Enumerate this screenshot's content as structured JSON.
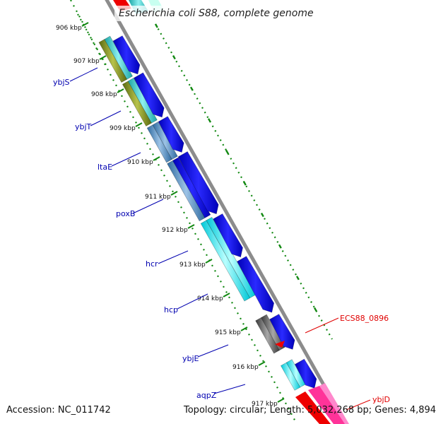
{
  "title": "Escherichia coli S88, complete genome",
  "footer": {
    "accession": "Accession: NC_011742",
    "summary": "Topology: circular; Length: 5,032,268 bp; Genes: 4,894"
  },
  "ticks": [
    {
      "label": "906 kbp"
    },
    {
      "label": "907 kbp"
    },
    {
      "label": "908 kbp"
    },
    {
      "label": "909 kbp"
    },
    {
      "label": "910 kbp"
    },
    {
      "label": "911 kbp"
    },
    {
      "label": "912 kbp"
    },
    {
      "label": "913 kbp"
    },
    {
      "label": "914 kbp"
    },
    {
      "label": "915 kbp"
    },
    {
      "label": "916 kbp"
    },
    {
      "label": "917 kbp"
    }
  ],
  "gene_labels": [
    {
      "text": "ybjS",
      "color": "#0000b0"
    },
    {
      "text": "ybjT",
      "color": "#0000b0"
    },
    {
      "text": "ltaE",
      "color": "#0000b0"
    },
    {
      "text": "poxB",
      "color": "#0000b0"
    },
    {
      "text": "hcr",
      "color": "#0000b0"
    },
    {
      "text": "hcp",
      "color": "#0000b0"
    },
    {
      "text": "ybjE",
      "color": "#0000b0"
    },
    {
      "text": "aqpZ",
      "color": "#0000b0"
    },
    {
      "text": "ECS88_0896",
      "color": "#e00000"
    },
    {
      "text": "ybjD",
      "color": "#e00000"
    }
  ],
  "colors": {
    "backbone": "#8c8c8c",
    "cds": "#0000dd",
    "tick": "#118811",
    "feature_red": "#ee0000"
  }
}
